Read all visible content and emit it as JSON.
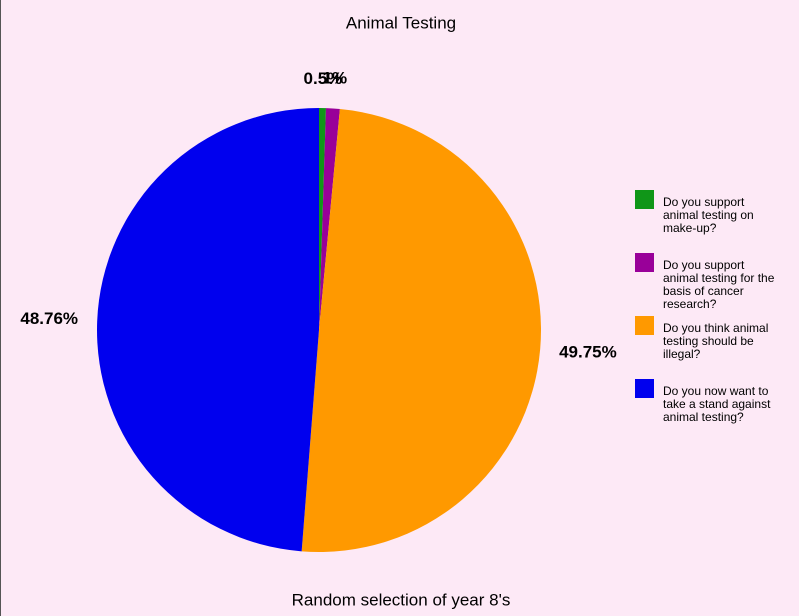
{
  "chart_data": {
    "type": "pie",
    "title": "Animal Testing",
    "subtitle": "Random selection of year 8's",
    "categories": [
      "Do you support animal testing on make-up?",
      "Do you support animal testing for the basis of cancer research?",
      "Do you think animal testing should be illegal?",
      "Do you now want to take a stand against animal testing?"
    ],
    "values": [
      0.5,
      1,
      49.75,
      48.76
    ],
    "value_labels": [
      "0.5%",
      "1%",
      "49.75%",
      "48.76%"
    ],
    "colors": [
      "#109618",
      "#990099",
      "#ff9900",
      "#0000ee"
    ],
    "legend": "right"
  }
}
